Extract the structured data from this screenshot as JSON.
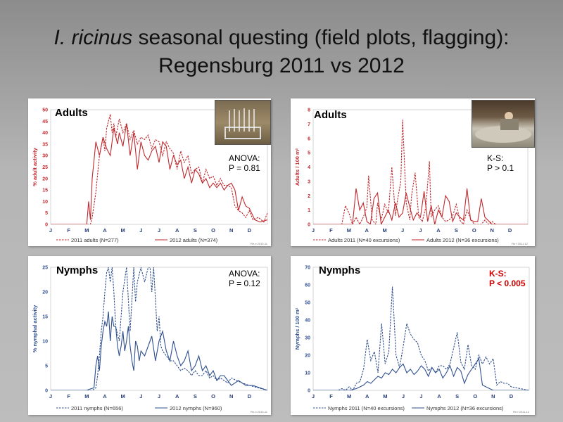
{
  "title": {
    "italic": "I. ricinus",
    "rest": " seasonal questing (field plots, flagging):",
    "line2": "Regensburg 2011 vs 2012"
  },
  "colors": {
    "red": "#c0282d",
    "blue": "#2f4f8f"
  },
  "months": [
    "J",
    "F",
    "M",
    "A",
    "M",
    "J",
    "J",
    "A",
    "S",
    "O",
    "N",
    "D"
  ],
  "panels": [
    {
      "id": "a1",
      "title": "Adults",
      "stat_line1": "ANOVA:",
      "stat_line2": "P = 0.81",
      "stat_highlight": false,
      "source": "Re.n 2010-11",
      "photo": "plot-photo"
    },
    {
      "id": "a2",
      "title": "Adults",
      "stat_line1": "K-S:",
      "stat_line2": "P > 0.1",
      "stat_highlight": false,
      "source": "Re f 2011-12",
      "photo": "car-photo"
    },
    {
      "id": "n1",
      "title": "Nymphs",
      "stat_line1": "ANOVA:",
      "stat_line2": "P = 0.12",
      "stat_highlight": false,
      "source": "Re.n 2010-11"
    },
    {
      "id": "n2",
      "title": "Nymphs",
      "stat_line1": "K-S:",
      "stat_line2": "P < 0.005",
      "stat_highlight": true,
      "source": "Re f 2011-12"
    }
  ],
  "chart_data": [
    {
      "type": "line",
      "ylabel": "% adult activity",
      "ylim": [
        0,
        50
      ],
      "yticks": [
        0,
        5,
        10,
        15,
        20,
        25,
        30,
        35,
        40,
        45,
        50
      ],
      "xlim": [
        0,
        12
      ],
      "color": "#c0282d",
      "series": [
        {
          "name": "2011 adults (N=277)",
          "dash": true,
          "x": [
            0,
            0.4,
            1.6,
            2.0,
            2.2,
            2.3,
            2.5,
            2.7,
            2.9,
            3.0,
            3.1,
            3.2,
            3.3,
            3.4,
            3.5,
            3.6,
            3.8,
            4.0,
            4.2,
            4.4,
            4.6,
            4.8,
            5.0,
            5.2,
            5.4,
            5.6,
            5.8,
            6.0,
            6.2,
            6.4,
            6.6,
            6.8,
            7.0,
            7.2,
            7.4,
            7.6,
            7.8,
            8.0,
            8.2,
            8.4,
            8.6,
            8.8,
            9.0,
            9.2,
            9.4,
            9.6,
            9.8,
            10.0,
            10.2,
            10.4,
            10.6,
            10.8,
            11.0,
            11.2,
            11.5,
            11.8,
            12.0
          ],
          "y": [
            0,
            0,
            0,
            0,
            0,
            3,
            14,
            30,
            38,
            32,
            42,
            45,
            48,
            40,
            44,
            38,
            46,
            40,
            44,
            37,
            41,
            35,
            38,
            37,
            39,
            33,
            37,
            36,
            30,
            36,
            33,
            31,
            24,
            32,
            27,
            30,
            22,
            24,
            25,
            18,
            24,
            20,
            21,
            17,
            20,
            17,
            17,
            16,
            8,
            6,
            5,
            3,
            6,
            2,
            3,
            1,
            5
          ]
        },
        {
          "name": "2012 adults (N=374)",
          "dash": false,
          "x": [
            0,
            0.3,
            1.6,
            2.0,
            2.1,
            2.2,
            2.3,
            2.5,
            2.7,
            2.9,
            3.1,
            3.3,
            3.5,
            3.7,
            3.8,
            4.0,
            4.2,
            4.4,
            4.6,
            4.8,
            5.0,
            5.2,
            5.4,
            5.6,
            5.8,
            6.0,
            6.2,
            6.4,
            6.6,
            6.8,
            7.0,
            7.2,
            7.4,
            7.6,
            7.8,
            8.0,
            8.2,
            8.4,
            8.6,
            8.8,
            9.0,
            9.2,
            9.4,
            9.6,
            9.8,
            10.0,
            10.2,
            10.4,
            10.6,
            10.8,
            11.0,
            11.3,
            11.6,
            12.0
          ],
          "y": [
            0,
            0,
            0,
            0,
            10,
            2,
            20,
            36,
            30,
            38,
            33,
            30,
            42,
            35,
            40,
            34,
            44,
            30,
            40,
            24,
            36,
            30,
            28,
            32,
            34,
            27,
            36,
            34,
            24,
            30,
            26,
            28,
            20,
            25,
            18,
            24,
            22,
            18,
            20,
            16,
            18,
            16,
            18,
            15,
            17,
            18,
            15,
            6,
            12,
            8,
            7,
            2,
            1,
            2
          ]
        }
      ]
    },
    {
      "type": "line",
      "ylabel": "Adults / 100 m²",
      "ylim": [
        0,
        8
      ],
      "yticks": [
        0,
        1,
        2,
        3,
        4,
        5,
        6,
        7,
        8
      ],
      "xlim": [
        0,
        12
      ],
      "color": "#c0282d",
      "series": [
        {
          "name": "Adults 2011 (N=40 excursions)",
          "dash": true,
          "x": [
            0,
            1.6,
            1.8,
            2.0,
            2.2,
            2.4,
            2.6,
            2.8,
            3.0,
            3.1,
            3.3,
            3.5,
            3.6,
            3.8,
            4.0,
            4.2,
            4.4,
            4.6,
            4.7,
            4.9,
            5.0,
            5.2,
            5.4,
            5.5,
            5.7,
            5.9,
            6.1,
            6.3,
            6.5,
            6.6,
            6.8,
            7.0,
            7.2,
            7.4,
            7.6,
            7.8,
            8.0,
            8.2,
            8.4,
            8.6,
            8.8,
            9.0,
            9.2,
            9.4,
            9.6,
            9.8,
            10.0,
            10.2,
            10.4,
            10.6,
            10.8,
            11.0,
            12.0
          ],
          "y": [
            0,
            0,
            1.3,
            0.8,
            0,
            0.5,
            0,
            0.5,
            1.2,
            3.4,
            0.3,
            0,
            1.5,
            0.3,
            1.4,
            0.8,
            4.0,
            0.6,
            1.6,
            3.0,
            7.3,
            1.5,
            0.3,
            2.0,
            3.6,
            0.5,
            0.2,
            1.2,
            4.4,
            0.5,
            1.0,
            1.3,
            0.5,
            0.2,
            0.3,
            0.6,
            1.4,
            0.3,
            0,
            1.0,
            0.4,
            0,
            0,
            0,
            0.3,
            0,
            0.2,
            0,
            0,
            0,
            0,
            0,
            0
          ]
        },
        {
          "name": "Adults 2012 (N=36 excursions)",
          "dash": false,
          "x": [
            0,
            2.0,
            2.2,
            2.4,
            2.6,
            2.8,
            3.0,
            3.2,
            3.4,
            3.6,
            3.8,
            4.0,
            4.2,
            4.4,
            4.6,
            4.8,
            5.0,
            5.2,
            5.4,
            5.6,
            5.8,
            6.0,
            6.2,
            6.4,
            6.6,
            6.8,
            7.0,
            7.2,
            7.4,
            7.6,
            7.8,
            8.0,
            8.2,
            8.4,
            8.6,
            8.8,
            9.0,
            9.2,
            9.4,
            9.6,
            10.0,
            12.0
          ],
          "y": [
            0,
            0,
            0,
            2.5,
            1.0,
            1.5,
            0.2,
            0,
            1.8,
            2.2,
            0,
            0.5,
            1.0,
            0.3,
            1.5,
            0.5,
            0.8,
            2.2,
            1.2,
            0.3,
            0.8,
            0.5,
            2.3,
            0.2,
            1.3,
            0,
            1.0,
            0.5,
            2.0,
            1.6,
            0.2,
            0.8,
            0.5,
            0.3,
            2.5,
            0.3,
            0.2,
            0.2,
            1.8,
            0.5,
            0,
            0
          ]
        }
      ]
    },
    {
      "type": "line",
      "ylabel": "% nymphal activity",
      "ylim": [
        0,
        25
      ],
      "yticks": [
        0,
        5,
        10,
        15,
        20,
        25
      ],
      "xlim": [
        0,
        12
      ],
      "color": "#2f4f8f",
      "series": [
        {
          "name": "2011 nymphs (N=656)",
          "dash": true,
          "x": [
            0,
            1.6,
            1.9,
            2.1,
            2.3,
            2.5,
            2.6,
            2.7,
            2.8,
            2.9,
            3.0,
            3.1,
            3.2,
            3.3,
            3.4,
            3.5,
            3.6,
            3.8,
            4.0,
            4.2,
            4.4,
            4.6,
            4.7,
            4.8,
            5.0,
            5.2,
            5.4,
            5.5,
            5.6,
            5.7,
            5.9,
            6.0,
            6.1,
            6.2,
            6.4,
            6.6,
            6.8,
            7.0,
            7.2,
            7.4,
            7.6,
            7.8,
            8.0,
            8.2,
            8.4,
            8.6,
            8.8,
            9.0,
            9.2,
            9.4,
            9.6,
            9.8,
            10.0,
            10.3,
            10.6,
            11.0,
            11.5,
            12.0
          ],
          "y": [
            0,
            0,
            0,
            0,
            0,
            0.5,
            3,
            7,
            12,
            15,
            20,
            24,
            25,
            22,
            25,
            20,
            13,
            10,
            20,
            25,
            12,
            25,
            18,
            22,
            25,
            22,
            25,
            25,
            20,
            25,
            12,
            15,
            9,
            8,
            7,
            6,
            6,
            5,
            4,
            4.5,
            4,
            3,
            4,
            3,
            3,
            4,
            2.5,
            3,
            2,
            2.5,
            2,
            1.5,
            2.5,
            2,
            1.5,
            1,
            0.5,
            0
          ]
        },
        {
          "name": "2012 nymphs (N=960)",
          "dash": false,
          "x": [
            0,
            1.8,
            2.0,
            2.2,
            2.4,
            2.5,
            2.6,
            2.7,
            2.8,
            2.9,
            3.0,
            3.1,
            3.2,
            3.3,
            3.4,
            3.5,
            3.6,
            3.7,
            3.8,
            3.9,
            4.0,
            4.1,
            4.2,
            4.3,
            4.4,
            4.5,
            4.6,
            4.7,
            4.8,
            4.9,
            5.0,
            5.2,
            5.4,
            5.6,
            5.8,
            6.0,
            6.2,
            6.4,
            6.6,
            6.8,
            7.0,
            7.2,
            7.4,
            7.6,
            7.8,
            8.0,
            8.2,
            8.4,
            8.6,
            8.8,
            9.0,
            9.2,
            9.4,
            9.6,
            9.8,
            10.0,
            10.4,
            10.8,
            11.2,
            11.6,
            12.0
          ],
          "y": [
            0,
            0,
            0,
            0.3,
            0.5,
            5,
            7,
            4,
            9,
            12,
            14,
            13,
            16,
            10,
            15,
            13,
            13,
            9,
            7,
            9,
            12,
            8,
            10,
            13,
            9,
            6,
            4,
            10,
            9,
            6,
            8,
            7,
            9,
            11,
            6,
            10,
            12,
            8,
            6,
            10,
            7,
            5,
            6,
            8,
            4,
            5,
            7,
            4,
            5,
            3,
            4,
            2,
            3,
            3,
            2,
            1,
            2,
            1,
            1,
            0.5,
            0
          ]
        }
      ]
    },
    {
      "type": "line",
      "ylabel": "Nymphs / 100 m²",
      "ylim": [
        0,
        70
      ],
      "yticks": [
        0,
        10,
        20,
        30,
        40,
        50,
        60,
        70
      ],
      "xlim": [
        0,
        12
      ],
      "color": "#2f4f8f",
      "series": [
        {
          "name": "Nymphs 2011 (N=40 excursions)",
          "dash": true,
          "x": [
            0,
            1.4,
            1.6,
            1.8,
            2.0,
            2.2,
            2.4,
            2.6,
            2.8,
            3.0,
            3.2,
            3.4,
            3.6,
            3.8,
            4.0,
            4.2,
            4.4,
            4.6,
            4.8,
            5.0,
            5.2,
            5.4,
            5.6,
            5.8,
            6.0,
            6.2,
            6.4,
            6.6,
            6.8,
            7.0,
            7.2,
            7.4,
            7.6,
            7.8,
            8.0,
            8.2,
            8.4,
            8.6,
            8.8,
            9.0,
            9.2,
            9.4,
            9.6,
            9.8,
            10.0,
            10.2,
            10.4,
            10.6,
            10.8,
            11.0,
            12.0
          ],
          "y": [
            0,
            0,
            1,
            0,
            2,
            0,
            4,
            5,
            12,
            29,
            17,
            22,
            10,
            38,
            15,
            22,
            59,
            20,
            13,
            25,
            38,
            32,
            29,
            27,
            20,
            17,
            11,
            13,
            10,
            14,
            14,
            12,
            15,
            24,
            33,
            16,
            12,
            26,
            14,
            12,
            20,
            15,
            19,
            15,
            18,
            3,
            5,
            4,
            4,
            2,
            0
          ]
        },
        {
          "name": "Nymphs 2012 (N=36 excursions)",
          "dash": false,
          "x": [
            0,
            2.0,
            2.4,
            2.8,
            3.0,
            3.2,
            3.4,
            3.6,
            3.8,
            4.0,
            4.2,
            4.4,
            4.6,
            4.8,
            5.0,
            5.2,
            5.4,
            5.6,
            5.8,
            6.0,
            6.2,
            6.4,
            6.6,
            6.8,
            7.0,
            7.2,
            7.4,
            7.6,
            7.8,
            8.0,
            8.2,
            8.4,
            8.6,
            8.8,
            9.0,
            9.2,
            9.4,
            9.6,
            10.0,
            12.0
          ],
          "y": [
            0,
            0,
            1,
            3,
            5,
            4,
            6,
            8,
            7,
            10,
            9,
            12,
            10,
            13,
            15,
            10,
            12,
            9,
            11,
            14,
            12,
            8,
            13,
            10,
            12,
            7,
            10,
            14,
            8,
            13,
            11,
            4,
            9,
            12,
            15,
            18,
            3,
            2,
            0,
            0
          ]
        }
      ]
    }
  ]
}
